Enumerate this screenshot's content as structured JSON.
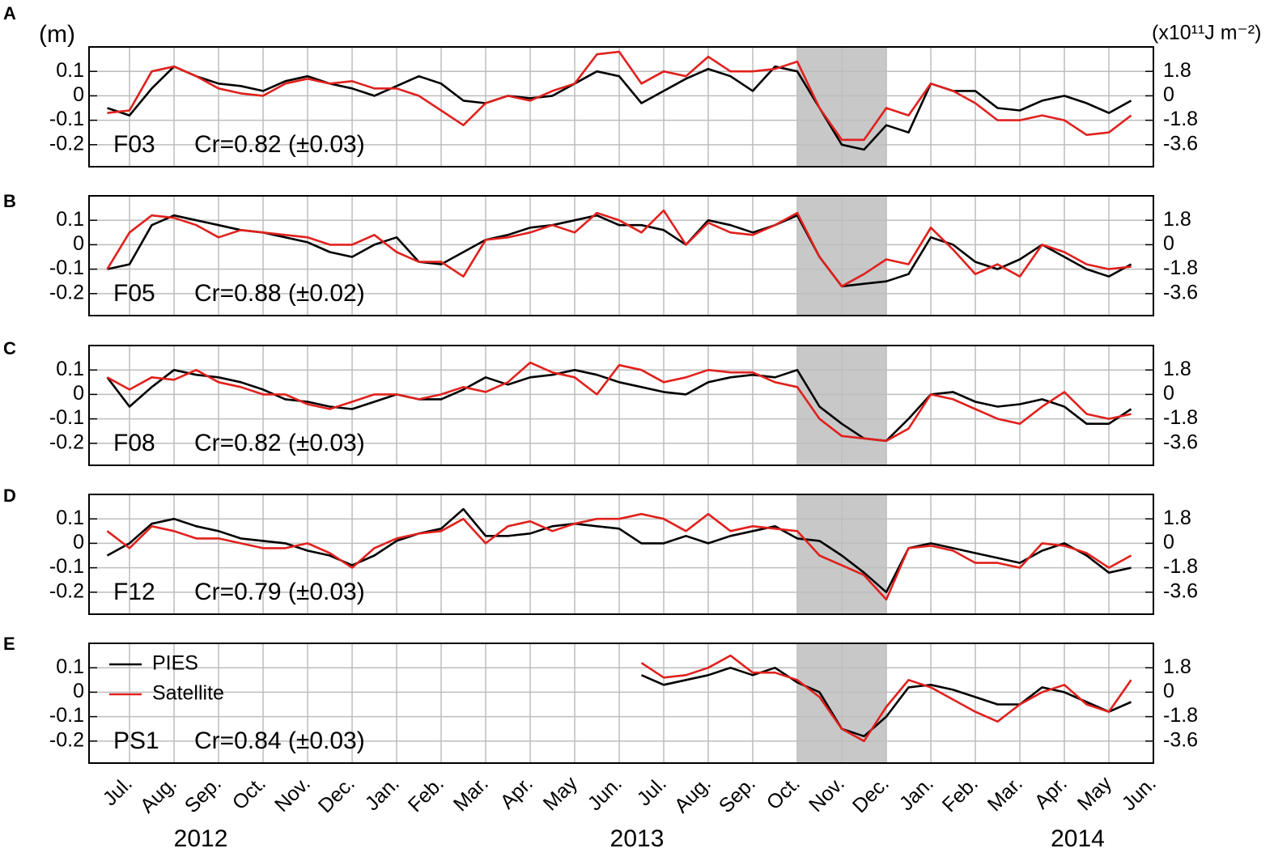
{
  "chart_data": [
    {
      "type": "line",
      "panel_label": "A",
      "station": "F03",
      "annotation": "Cr=0.82 (±0.03)",
      "ylabel": "(m)",
      "y2label": "(x10¹¹J m⁻²)",
      "x": [
        0.5,
        1,
        1.5,
        2,
        2.5,
        3,
        3.5,
        4,
        4.5,
        5,
        5.5,
        6,
        6.5,
        7,
        7.5,
        8,
        8.5,
        9,
        9.5,
        10,
        10.5,
        11,
        11.5,
        12,
        12.5,
        13,
        13.5,
        14,
        14.5,
        15,
        15.5,
        16,
        16.5,
        17,
        17.5,
        18,
        18.5,
        19,
        19.5,
        20,
        20.5,
        21,
        21.5,
        22,
        22.5,
        23,
        23.5
      ],
      "xlim": [
        0.09,
        24
      ],
      "xticks": [
        1,
        2,
        3,
        4,
        5,
        6,
        7,
        8,
        9,
        10,
        11,
        12,
        13,
        14,
        15,
        16,
        17,
        18,
        19,
        20,
        21,
        22,
        23,
        24
      ],
      "ylim": [
        -0.29,
        0.2
      ],
      "yticks": [
        -0.2,
        -0.1,
        0,
        0.1
      ],
      "y2lim": [
        -5.22,
        3.6
      ],
      "y2ticks": [
        -3.6,
        -1.8,
        0,
        1.8
      ],
      "shaded_x": [
        16,
        18
      ],
      "grid": true,
      "series": [
        {
          "color": "#000000",
          "values": [
            -0.05,
            -0.08,
            0.03,
            0.12,
            0.08,
            0.05,
            0.04,
            0.02,
            0.06,
            0.08,
            0.05,
            0.03,
            0.0,
            0.04,
            0.08,
            0.05,
            -0.02,
            -0.03,
            0.0,
            -0.01,
            0.0,
            0.05,
            0.1,
            0.08,
            -0.03,
            0.02,
            0.07,
            0.11,
            0.08,
            0.02,
            0.12,
            0.1,
            -0.05,
            -0.2,
            -0.22,
            -0.12,
            -0.15,
            0.05,
            0.02,
            0.02,
            -0.05,
            -0.06,
            -0.02,
            0.0,
            -0.03,
            -0.07,
            -0.02
          ]
        },
        {
          "color": "#e0211d",
          "values": [
            -0.07,
            -0.06,
            0.1,
            0.12,
            0.08,
            0.03,
            0.01,
            0.0,
            0.05,
            0.07,
            0.05,
            0.06,
            0.03,
            0.03,
            0.0,
            -0.06,
            -0.12,
            -0.03,
            0.0,
            -0.02,
            0.02,
            0.05,
            0.17,
            0.18,
            0.05,
            0.1,
            0.08,
            0.16,
            0.1,
            0.1,
            0.11,
            0.14,
            -0.05,
            -0.18,
            -0.18,
            -0.05,
            -0.08,
            0.05,
            0.02,
            -0.03,
            -0.1,
            -0.1,
            -0.08,
            -0.1,
            -0.16,
            -0.15,
            -0.08
          ]
        }
      ]
    },
    {
      "type": "line",
      "panel_label": "B",
      "station": "F05",
      "annotation": "Cr=0.88 (±0.02)",
      "x": [
        0.5,
        1,
        1.5,
        2,
        2.5,
        3,
        3.5,
        4,
        4.5,
        5,
        5.5,
        6,
        6.5,
        7,
        7.5,
        8,
        8.5,
        9,
        9.5,
        10,
        10.5,
        11,
        11.5,
        12,
        12.5,
        13,
        13.5,
        14,
        14.5,
        15,
        15.5,
        16,
        16.5,
        17,
        17.5,
        18,
        18.5,
        19,
        19.5,
        20,
        20.5,
        21,
        21.5,
        22,
        22.5,
        23,
        23.5
      ],
      "xlim": [
        0.09,
        24
      ],
      "xticks": [
        1,
        2,
        3,
        4,
        5,
        6,
        7,
        8,
        9,
        10,
        11,
        12,
        13,
        14,
        15,
        16,
        17,
        18,
        19,
        20,
        21,
        22,
        23,
        24
      ],
      "ylim": [
        -0.29,
        0.2
      ],
      "yticks": [
        -0.2,
        -0.1,
        0,
        0.1
      ],
      "y2lim": [
        -5.22,
        3.6
      ],
      "y2ticks": [
        -3.6,
        -1.8,
        0,
        1.8
      ],
      "shaded_x": [
        16,
        18
      ],
      "grid": true,
      "series": [
        {
          "color": "#000000",
          "values": [
            -0.1,
            -0.08,
            0.08,
            0.12,
            0.1,
            0.08,
            0.06,
            0.05,
            0.03,
            0.01,
            -0.03,
            -0.05,
            0.0,
            0.03,
            -0.07,
            -0.08,
            -0.03,
            0.02,
            0.04,
            0.07,
            0.08,
            0.1,
            0.12,
            0.08,
            0.08,
            0.06,
            0.0,
            0.1,
            0.08,
            0.05,
            0.08,
            0.12,
            -0.05,
            -0.17,
            -0.16,
            -0.15,
            -0.12,
            0.03,
            0.0,
            -0.07,
            -0.1,
            -0.06,
            0.0,
            -0.05,
            -0.1,
            -0.13,
            -0.08
          ]
        },
        {
          "color": "#e0211d",
          "values": [
            -0.1,
            0.05,
            0.12,
            0.11,
            0.08,
            0.03,
            0.06,
            0.05,
            0.04,
            0.03,
            0.0,
            0.0,
            0.04,
            -0.03,
            -0.07,
            -0.07,
            -0.13,
            0.02,
            0.03,
            0.05,
            0.08,
            0.05,
            0.13,
            0.1,
            0.05,
            0.14,
            0.0,
            0.09,
            0.05,
            0.04,
            0.08,
            0.13,
            -0.05,
            -0.17,
            -0.12,
            -0.06,
            -0.08,
            0.07,
            -0.02,
            -0.12,
            -0.08,
            -0.13,
            0.0,
            -0.03,
            -0.08,
            -0.1,
            -0.09
          ]
        }
      ]
    },
    {
      "type": "line",
      "panel_label": "C",
      "station": "F08",
      "annotation": "Cr=0.82 (±0.03)",
      "x": [
        0.5,
        1,
        1.5,
        2,
        2.5,
        3,
        3.5,
        4,
        4.5,
        5,
        5.5,
        6,
        6.5,
        7,
        7.5,
        8,
        8.5,
        9,
        9.5,
        10,
        10.5,
        11,
        11.5,
        12,
        12.5,
        13,
        13.5,
        14,
        14.5,
        15,
        15.5,
        16,
        16.5,
        17,
        17.5,
        18,
        18.5,
        19,
        19.5,
        20,
        20.5,
        21,
        21.5,
        22,
        22.5,
        23,
        23.5
      ],
      "xlim": [
        0.09,
        24
      ],
      "xticks": [
        1,
        2,
        3,
        4,
        5,
        6,
        7,
        8,
        9,
        10,
        11,
        12,
        13,
        14,
        15,
        16,
        17,
        18,
        19,
        20,
        21,
        22,
        23,
        24
      ],
      "ylim": [
        -0.29,
        0.2
      ],
      "yticks": [
        -0.2,
        -0.1,
        0,
        0.1
      ],
      "y2lim": [
        -5.22,
        3.6
      ],
      "y2ticks": [
        -3.6,
        -1.8,
        0,
        1.8
      ],
      "shaded_x": [
        16,
        18
      ],
      "grid": true,
      "series": [
        {
          "color": "#000000",
          "values": [
            0.07,
            -0.05,
            0.03,
            0.1,
            0.08,
            0.07,
            0.05,
            0.02,
            -0.02,
            -0.03,
            -0.05,
            -0.06,
            -0.03,
            0.0,
            -0.02,
            -0.02,
            0.02,
            0.07,
            0.04,
            0.07,
            0.08,
            0.1,
            0.08,
            0.05,
            0.03,
            0.01,
            0.0,
            0.05,
            0.07,
            0.08,
            0.07,
            0.1,
            -0.05,
            -0.12,
            -0.18,
            -0.19,
            -0.1,
            0.0,
            0.01,
            -0.03,
            -0.05,
            -0.04,
            -0.02,
            -0.05,
            -0.12,
            -0.12,
            -0.06
          ]
        },
        {
          "color": "#e0211d",
          "values": [
            0.07,
            0.02,
            0.07,
            0.06,
            0.1,
            0.05,
            0.03,
            0.0,
            0.0,
            -0.04,
            -0.06,
            -0.03,
            0.0,
            0.0,
            -0.02,
            0.0,
            0.03,
            0.01,
            0.05,
            0.13,
            0.09,
            0.07,
            0.0,
            0.12,
            0.1,
            0.05,
            0.07,
            0.1,
            0.09,
            0.09,
            0.05,
            0.03,
            -0.1,
            -0.17,
            -0.18,
            -0.19,
            -0.14,
            0.0,
            -0.02,
            -0.06,
            -0.1,
            -0.12,
            -0.05,
            0.01,
            -0.08,
            -0.1,
            -0.08
          ]
        }
      ]
    },
    {
      "type": "line",
      "panel_label": "D",
      "station": "F12",
      "annotation": "Cr=0.79 (±0.03)",
      "x": [
        0.5,
        1,
        1.5,
        2,
        2.5,
        3,
        3.5,
        4,
        4.5,
        5,
        5.5,
        6,
        6.5,
        7,
        7.5,
        8,
        8.5,
        9,
        9.5,
        10,
        10.5,
        11,
        11.5,
        12,
        12.5,
        13,
        13.5,
        14,
        14.5,
        15,
        15.5,
        16,
        16.5,
        17,
        17.5,
        18,
        18.5,
        19,
        19.5,
        20,
        20.5,
        21,
        21.5,
        22,
        22.5,
        23,
        23.5
      ],
      "xlim": [
        0.09,
        24
      ],
      "xticks": [
        1,
        2,
        3,
        4,
        5,
        6,
        7,
        8,
        9,
        10,
        11,
        12,
        13,
        14,
        15,
        16,
        17,
        18,
        19,
        20,
        21,
        22,
        23,
        24
      ],
      "ylim": [
        -0.29,
        0.2
      ],
      "yticks": [
        -0.2,
        -0.1,
        0,
        0.1
      ],
      "y2lim": [
        -5.22,
        3.6
      ],
      "y2ticks": [
        -3.6,
        -1.8,
        0,
        1.8
      ],
      "shaded_x": [
        16,
        18
      ],
      "grid": true,
      "series": [
        {
          "color": "#000000",
          "values": [
            -0.05,
            0.0,
            0.08,
            0.1,
            0.07,
            0.05,
            0.02,
            0.01,
            0.0,
            -0.03,
            -0.05,
            -0.09,
            -0.05,
            0.01,
            0.04,
            0.06,
            0.14,
            0.03,
            0.03,
            0.04,
            0.07,
            0.08,
            0.07,
            0.06,
            0.0,
            0.0,
            0.03,
            0.0,
            0.03,
            0.05,
            0.07,
            0.02,
            0.01,
            -0.05,
            -0.12,
            -0.2,
            -0.02,
            0.0,
            -0.02,
            -0.04,
            -0.06,
            -0.08,
            -0.03,
            0.0,
            -0.05,
            -0.12,
            -0.1
          ]
        },
        {
          "color": "#e0211d",
          "values": [
            0.05,
            -0.02,
            0.07,
            0.05,
            0.02,
            0.02,
            0.0,
            -0.02,
            -0.02,
            0.0,
            -0.04,
            -0.1,
            -0.02,
            0.02,
            0.04,
            0.05,
            0.1,
            0.0,
            0.07,
            0.09,
            0.05,
            0.08,
            0.1,
            0.1,
            0.12,
            0.1,
            0.05,
            0.12,
            0.05,
            0.07,
            0.06,
            0.05,
            -0.05,
            -0.09,
            -0.13,
            -0.23,
            -0.02,
            -0.01,
            -0.03,
            -0.08,
            -0.08,
            -0.1,
            0.0,
            -0.01,
            -0.04,
            -0.1,
            -0.05
          ]
        }
      ]
    },
    {
      "type": "line",
      "panel_label": "E",
      "station": "PS1",
      "annotation": "Cr=0.84 (±0.03)",
      "legend": "upper left",
      "x": [
        0.5,
        1,
        1.5,
        2,
        2.5,
        3,
        3.5,
        4,
        4.5,
        5,
        5.5,
        6,
        6.5,
        7,
        7.5,
        8,
        8.5,
        9,
        9.5,
        10,
        10.5,
        11,
        11.5,
        12,
        12.5,
        13,
        13.5,
        14,
        14.5,
        15,
        15.5,
        16,
        16.5,
        17,
        17.5,
        18,
        18.5,
        19,
        19.5,
        20,
        20.5,
        21,
        21.5,
        22,
        22.5,
        23,
        23.5
      ],
      "xlim": [
        0.09,
        24
      ],
      "xticks": [
        {
          "value": 1,
          "label": "Jul."
        },
        {
          "value": 2,
          "label": "Aug."
        },
        {
          "value": 3,
          "label": "Sep."
        },
        {
          "value": 4,
          "label": "Oct."
        },
        {
          "value": 5,
          "label": "Nov."
        },
        {
          "value": 6,
          "label": "Dec."
        },
        {
          "value": 7,
          "label": "Jan."
        },
        {
          "value": 8,
          "label": "Feb."
        },
        {
          "value": 9,
          "label": "Mar."
        },
        {
          "value": 10,
          "label": "Apr."
        },
        {
          "value": 11,
          "label": "May"
        },
        {
          "value": 12,
          "label": "Jun."
        },
        {
          "value": 13,
          "label": "Jul."
        },
        {
          "value": 14,
          "label": "Aug."
        },
        {
          "value": 15,
          "label": "Sep."
        },
        {
          "value": 16,
          "label": "Oct."
        },
        {
          "value": 17,
          "label": "Nov."
        },
        {
          "value": 18,
          "label": "Dec."
        },
        {
          "value": 19,
          "label": "Jan."
        },
        {
          "value": 20,
          "label": "Feb."
        },
        {
          "value": 21,
          "label": "Mar."
        },
        {
          "value": 22,
          "label": "Apr."
        },
        {
          "value": 23,
          "label": "May"
        },
        {
          "value": 24,
          "label": "Jun."
        }
      ],
      "year_labels": [
        {
          "value": 2.6,
          "label": "2012"
        },
        {
          "value": 12.4,
          "label": "2013"
        },
        {
          "value": 22.3,
          "label": "2014"
        }
      ],
      "ylim": [
        -0.29,
        0.2
      ],
      "yticks": [
        -0.2,
        -0.1,
        0,
        0.1
      ],
      "y2lim": [
        -5.22,
        3.6
      ],
      "y2ticks": [
        -3.6,
        -1.8,
        0,
        1.8
      ],
      "shaded_x": [
        16,
        18
      ],
      "grid": true,
      "series": [
        {
          "name": "PIES",
          "color": "#000000",
          "values": [
            null,
            null,
            null,
            null,
            null,
            null,
            null,
            null,
            null,
            null,
            null,
            null,
            null,
            null,
            null,
            null,
            null,
            null,
            null,
            null,
            null,
            null,
            null,
            null,
            0.07,
            0.03,
            0.05,
            0.07,
            0.1,
            0.07,
            0.1,
            0.04,
            0.0,
            -0.15,
            -0.18,
            -0.1,
            0.02,
            0.03,
            0.01,
            -0.02,
            -0.05,
            -0.05,
            0.02,
            0.0,
            -0.04,
            -0.08,
            -0.04
          ]
        },
        {
          "name": "Satellite",
          "color": "#e0211d",
          "values": [
            null,
            null,
            null,
            null,
            null,
            null,
            null,
            null,
            null,
            null,
            null,
            null,
            null,
            null,
            null,
            null,
            null,
            null,
            null,
            null,
            null,
            null,
            null,
            null,
            0.12,
            0.06,
            0.07,
            0.1,
            0.15,
            0.08,
            0.08,
            0.05,
            -0.02,
            -0.15,
            -0.2,
            -0.06,
            0.05,
            0.02,
            -0.03,
            -0.08,
            -0.12,
            -0.05,
            0.0,
            0.03,
            -0.05,
            -0.08,
            0.05
          ]
        }
      ]
    }
  ]
}
